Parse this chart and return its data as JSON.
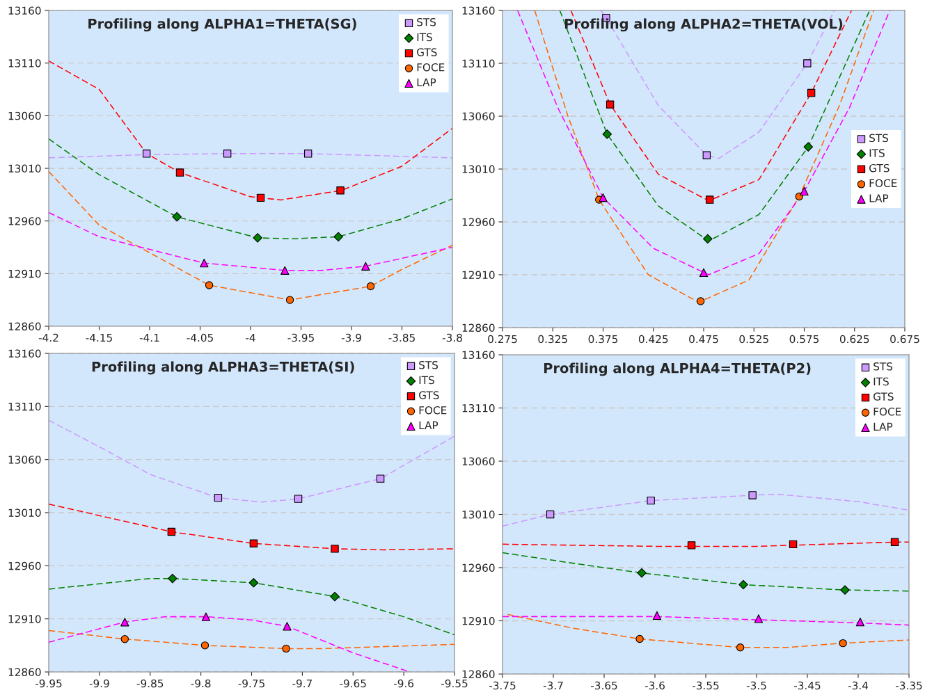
{
  "chart_data": [
    {
      "type": "scatter",
      "title": "Profiling along ALPHA1=THETA(SG)",
      "xlim": [
        -4.2,
        -3.8
      ],
      "xticks": [
        -4.2,
        -4.15,
        -4.1,
        -4.05,
        -4,
        -3.95,
        -3.9,
        -3.85,
        -3.8
      ],
      "ylim": [
        12860,
        13160
      ],
      "yticks": [
        12860,
        12910,
        12960,
        13010,
        13060,
        13110,
        13160
      ],
      "grid": "y",
      "legend": "top right",
      "series": [
        {
          "name": "STS",
          "color": "#cc99ff",
          "marker": "square",
          "x": [
            -4.103,
            -4.023,
            -3.943
          ],
          "values": [
            13024,
            13024,
            13024
          ]
        },
        {
          "name": "ITS",
          "color": "#008000",
          "marker": "diamond",
          "x": [
            -4.073,
            -3.993,
            -3.913
          ],
          "values": [
            12964,
            12944,
            12945
          ]
        },
        {
          "name": "GTS",
          "color": "#ff0000",
          "marker": "square",
          "x": [
            -4.07,
            -3.99,
            -3.911
          ],
          "values": [
            13006,
            12982,
            12989
          ]
        },
        {
          "name": "FOCE",
          "color": "#ff6600",
          "marker": "circle",
          "x": [
            -4.041,
            -3.961,
            -3.881
          ],
          "values": [
            12899,
            12885,
            12898
          ]
        },
        {
          "name": "LAP",
          "color": "#ff00ff",
          "marker": "triangle",
          "x": [
            -4.046,
            -3.966,
            -3.886
          ],
          "values": [
            12920,
            12913,
            12917
          ]
        },
        {
          "type": "line",
          "color": "#cc99ff",
          "line_style": "dashed",
          "x": [
            -4.2,
            -4.103,
            -4.023,
            -3.943,
            -3.8
          ],
          "values": [
            13020,
            13023,
            13024,
            13024,
            13020
          ]
        },
        {
          "type": "line",
          "color": "#008000",
          "line_style": "dashed",
          "x": [
            -4.2,
            -4.15,
            -4.073,
            -3.993,
            -3.96,
            -3.913,
            -3.85,
            -3.8
          ],
          "values": [
            13038,
            13004,
            12964,
            12944,
            12943,
            12945,
            12962,
            12981
          ]
        },
        {
          "type": "line",
          "color": "#ff0000",
          "line_style": "dashed",
          "x": [
            -4.2,
            -4.15,
            -4.103,
            -4.07,
            -4.0,
            -3.97,
            -3.91,
            -3.85,
            -3.8
          ],
          "values": [
            13112,
            13085,
            13024,
            13006,
            12983,
            12980,
            12989,
            13012,
            13048
          ]
        },
        {
          "type": "line",
          "color": "#ff6600",
          "line_style": "dashed",
          "x": [
            -4.2,
            -4.15,
            -4.041,
            -3.961,
            -3.881,
            -3.85,
            -3.8
          ],
          "values": [
            13007,
            12956,
            12899,
            12885,
            12898,
            12914,
            12937
          ]
        },
        {
          "type": "line",
          "color": "#ff00ff",
          "line_style": "dashed",
          "x": [
            -4.2,
            -4.15,
            -4.046,
            -3.966,
            -3.93,
            -3.886,
            -3.8
          ],
          "values": [
            12968,
            12945,
            12920,
            12913,
            12913,
            12917,
            12935
          ]
        }
      ]
    },
    {
      "type": "scatter",
      "title": "Profiling along ALPHA2=THETA(VOL)",
      "xlim": [
        0.275,
        0.675
      ],
      "xticks": [
        0.275,
        0.325,
        0.375,
        0.425,
        0.475,
        0.525,
        0.575,
        0.625,
        0.675
      ],
      "ylim": [
        12860,
        13160
      ],
      "yticks": [
        12860,
        12910,
        12960,
        13010,
        13060,
        13110,
        13160
      ],
      "grid": "y",
      "legend": "right",
      "series": [
        {
          "name": "STS",
          "color": "#cc99ff",
          "marker": "square",
          "x": [
            0.378,
            0.478,
            0.578
          ],
          "values": [
            13153,
            13023,
            13110
          ]
        },
        {
          "name": "ITS",
          "color": "#008000",
          "marker": "diamond",
          "x": [
            0.379,
            0.479,
            0.579
          ],
          "values": [
            13043,
            12944,
            13031
          ]
        },
        {
          "name": "GTS",
          "color": "#ff0000",
          "marker": "square",
          "x": [
            0.382,
            0.481,
            0.582
          ],
          "values": [
            13071,
            12981,
            13082
          ]
        },
        {
          "name": "FOCE",
          "color": "#ff6600",
          "marker": "circle",
          "x": [
            0.371,
            0.472,
            0.57
          ],
          "values": [
            12981,
            12885,
            12984
          ]
        },
        {
          "name": "LAP",
          "color": "#ff00ff",
          "marker": "triangle",
          "x": [
            0.375,
            0.475,
            0.575
          ],
          "values": [
            12983,
            12912,
            12989
          ]
        },
        {
          "type": "line",
          "color": "#cc99ff",
          "line_style": "dashed",
          "x": [
            0.373,
            0.378,
            0.43,
            0.478,
            0.49,
            0.53,
            0.578,
            0.605
          ],
          "values": [
            13160,
            13153,
            13070,
            13023,
            13020,
            13045,
            13110,
            13160
          ]
        },
        {
          "type": "line",
          "color": "#008000",
          "line_style": "dashed",
          "x": [
            0.332,
            0.379,
            0.43,
            0.48,
            0.53,
            0.579,
            0.64
          ],
          "values": [
            13160,
            13043,
            12975,
            12942,
            12967,
            13031,
            13160
          ]
        },
        {
          "type": "line",
          "color": "#ff0000",
          "line_style": "dashed",
          "x": [
            0.343,
            0.382,
            0.43,
            0.48,
            0.53,
            0.582,
            0.622
          ],
          "values": [
            13160,
            13071,
            13005,
            12980,
            13000,
            13082,
            13160
          ]
        },
        {
          "type": "line",
          "color": "#ff6600",
          "line_style": "dashed",
          "x": [
            0.307,
            0.34,
            0.371,
            0.42,
            0.47,
            0.52,
            0.57,
            0.61,
            0.644
          ],
          "values": [
            13160,
            13060,
            12981,
            12910,
            12884,
            12905,
            12984,
            13070,
            13160
          ]
        },
        {
          "type": "line",
          "color": "#ff00ff",
          "line_style": "dashed",
          "x": [
            0.29,
            0.33,
            0.375,
            0.425,
            0.48,
            0.53,
            0.575,
            0.62,
            0.66
          ],
          "values": [
            13160,
            13068,
            12983,
            12935,
            12910,
            12930,
            12989,
            13068,
            13160
          ]
        }
      ]
    },
    {
      "type": "scatter",
      "title": "Profiling along ALPHA3=THETA(SI)",
      "xlim": [
        -9.95,
        -9.55
      ],
      "xticks": [
        -9.95,
        -9.9,
        -9.85,
        -9.8,
        -9.75,
        -9.7,
        -9.65,
        -9.6,
        -9.55
      ],
      "ylim": [
        12860,
        13160
      ],
      "yticks": [
        12860,
        12910,
        12960,
        13010,
        13060,
        13110,
        13160
      ],
      "grid": "y",
      "legend": "top right",
      "series": [
        {
          "name": "STS",
          "color": "#cc99ff",
          "marker": "square",
          "x": [
            -9.783,
            -9.704,
            -9.623
          ],
          "values": [
            13024,
            13023,
            13042
          ]
        },
        {
          "name": "ITS",
          "color": "#008000",
          "marker": "diamond",
          "x": [
            -9.828,
            -9.748,
            -9.668
          ],
          "values": [
            12948,
            12944,
            12931
          ]
        },
        {
          "name": "GTS",
          "color": "#ff0000",
          "marker": "square",
          "x": [
            -9.829,
            -9.748,
            -9.668
          ],
          "values": [
            12992,
            12981,
            12976
          ]
        },
        {
          "name": "FOCE",
          "color": "#ff6600",
          "marker": "circle",
          "x": [
            -9.875,
            -9.796,
            -9.716
          ],
          "values": [
            12891,
            12885,
            12882
          ]
        },
        {
          "name": "LAP",
          "color": "#ff00ff",
          "marker": "triangle",
          "x": [
            -9.875,
            -9.795,
            -9.715
          ],
          "values": [
            12907,
            12912,
            12903
          ]
        },
        {
          "type": "line",
          "color": "#cc99ff",
          "line_style": "dashed",
          "x": [
            -9.95,
            -9.9,
            -9.85,
            -9.783,
            -9.74,
            -9.704,
            -9.623,
            -9.55
          ],
          "values": [
            13097,
            13072,
            13046,
            13024,
            13020,
            13023,
            13042,
            13082
          ]
        },
        {
          "type": "line",
          "color": "#008000",
          "line_style": "dashed",
          "x": [
            -9.95,
            -9.85,
            -9.828,
            -9.748,
            -9.668,
            -9.6,
            -9.55
          ],
          "values": [
            12938,
            12948,
            12948,
            12944,
            12931,
            12912,
            12895
          ]
        },
        {
          "type": "line",
          "color": "#ff0000",
          "line_style": "dashed",
          "x": [
            -9.95,
            -9.829,
            -9.748,
            -9.668,
            -9.62,
            -9.55
          ],
          "values": [
            13018,
            12992,
            12981,
            12976,
            12975,
            12976
          ]
        },
        {
          "type": "line",
          "color": "#ff6600",
          "line_style": "dashed",
          "x": [
            -9.95,
            -9.875,
            -9.796,
            -9.716,
            -9.68,
            -9.55
          ],
          "values": [
            12899,
            12891,
            12885,
            12882,
            12882,
            12886
          ]
        },
        {
          "type": "line",
          "color": "#ff00ff",
          "line_style": "dashed",
          "x": [
            -9.95,
            -9.875,
            -9.835,
            -9.795,
            -9.75,
            -9.715,
            -9.65,
            -9.594
          ],
          "values": [
            12888,
            12907,
            12912,
            12912,
            12909,
            12903,
            12878,
            12860
          ]
        }
      ]
    },
    {
      "type": "scatter",
      "title": "Profiling along ALPHA4=THETA(P2)",
      "xlim": [
        -3.75,
        -3.35
      ],
      "xticks": [
        -3.75,
        -3.7,
        -3.65,
        -3.6,
        -3.55,
        -3.5,
        -3.45,
        -3.4,
        -3.35
      ],
      "ylim": [
        12860,
        13160
      ],
      "yticks": [
        12860,
        12910,
        12960,
        13010,
        13060,
        13110,
        13160
      ],
      "grid": "y",
      "legend": "top right",
      "series": [
        {
          "name": "STS",
          "color": "#cc99ff",
          "marker": "square",
          "x": [
            -3.703,
            -3.604,
            -3.504
          ],
          "values": [
            13010,
            13023,
            13028
          ]
        },
        {
          "name": "ITS",
          "color": "#008000",
          "marker": "diamond",
          "x": [
            -3.613,
            -3.513,
            -3.413
          ],
          "values": [
            12955,
            12944,
            12939
          ]
        },
        {
          "name": "GTS",
          "color": "#ff0000",
          "marker": "square",
          "x": [
            -3.564,
            -3.464,
            -3.364
          ],
          "values": [
            12981,
            12982,
            12984
          ]
        },
        {
          "name": "FOCE",
          "color": "#ff6600",
          "marker": "circle",
          "x": [
            -3.615,
            -3.516,
            -3.415
          ],
          "values": [
            12893,
            12885,
            12889
          ]
        },
        {
          "name": "LAP",
          "color": "#ff00ff",
          "marker": "triangle",
          "x": [
            -3.598,
            -3.498,
            -3.398
          ],
          "values": [
            12915,
            12912,
            12909
          ]
        },
        {
          "type": "line",
          "color": "#cc99ff",
          "line_style": "dashed",
          "x": [
            -3.75,
            -3.703,
            -3.604,
            -3.504,
            -3.48,
            -3.4,
            -3.35
          ],
          "values": [
            12999,
            13010,
            13023,
            13028,
            13029,
            13022,
            13014
          ]
        },
        {
          "type": "line",
          "color": "#008000",
          "line_style": "dashed",
          "x": [
            -3.75,
            -3.68,
            -3.613,
            -3.513,
            -3.413,
            -3.35
          ],
          "values": [
            12974,
            12964,
            12955,
            12944,
            12939,
            12938
          ]
        },
        {
          "type": "line",
          "color": "#ff0000",
          "line_style": "dashed",
          "x": [
            -3.75,
            -3.6,
            -3.5,
            -3.364,
            -3.35
          ],
          "values": [
            12982,
            12980,
            12980,
            12984,
            12984
          ]
        },
        {
          "type": "line",
          "color": "#ff6600",
          "line_style": "dashed",
          "x": [
            -3.745,
            -3.68,
            -3.615,
            -3.516,
            -3.47,
            -3.415,
            -3.35
          ],
          "values": [
            12916,
            12903,
            12893,
            12885,
            12885,
            12889,
            12892
          ]
        },
        {
          "type": "line",
          "color": "#ff00ff",
          "line_style": "dashed",
          "x": [
            -3.75,
            -3.598,
            -3.498,
            -3.398,
            -3.35
          ],
          "values": [
            12914,
            12914,
            12911,
            12908,
            12906
          ]
        }
      ]
    }
  ]
}
